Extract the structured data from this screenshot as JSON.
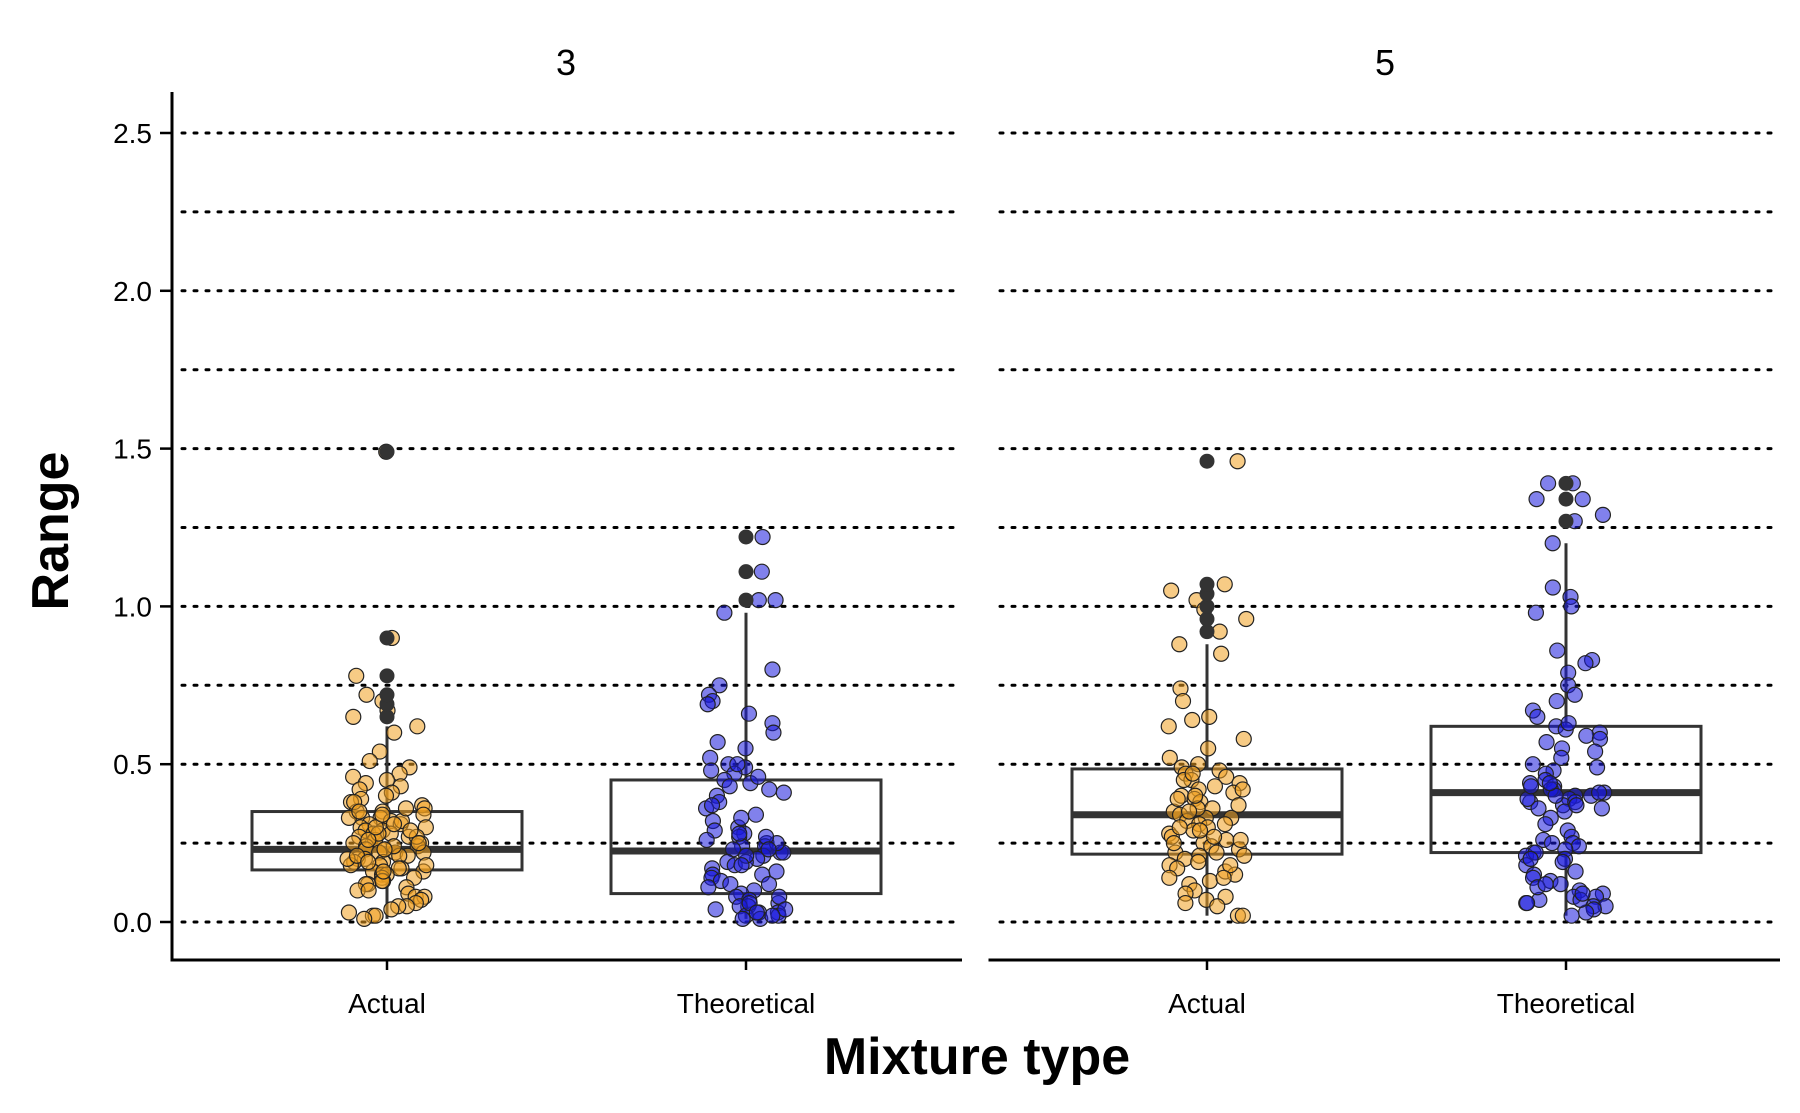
{
  "chart_data": {
    "type": "boxplot-with-jitter",
    "xlabel": "Mixture type",
    "ylabel": "Range",
    "ylim": [
      -0.12,
      2.62
    ],
    "yticks": [
      0.0,
      0.5,
      1.0,
      1.5,
      2.0,
      2.5
    ],
    "ytick_labels": [
      "0.0",
      "0.5",
      "1.0",
      "1.5",
      "2.0",
      "2.5"
    ],
    "gridlines": [
      0.0,
      0.25,
      0.5,
      0.75,
      1.0,
      1.25,
      1.5,
      1.75,
      2.0,
      2.25,
      2.5
    ],
    "grid": "horizontal dotted",
    "legend": "none",
    "colors": {
      "Actual": "#f0a020",
      "Theoretical": "#1a1adc",
      "outlier": "#333333",
      "box": "#333333"
    },
    "categories": [
      "Actual",
      "Theoretical"
    ],
    "panels": [
      {
        "label": "3",
        "boxes": [
          {
            "category": "Actual",
            "q1": 0.165,
            "median": 0.23,
            "q3": 0.35,
            "whisker_low": 0.01,
            "whisker_high": 0.62,
            "outliers": [
              0.65,
              0.69,
              0.72,
              0.78,
              0.9,
              1.49
            ]
          },
          {
            "category": "Theoretical",
            "q1": 0.09,
            "median": 0.225,
            "q3": 0.45,
            "whisker_low": 0.01,
            "whisker_high": 0.98,
            "outliers": [
              1.02,
              1.11,
              1.22
            ]
          }
        ]
      },
      {
        "label": "5",
        "boxes": [
          {
            "category": "Actual",
            "q1": 0.215,
            "median": 0.34,
            "q3": 0.485,
            "whisker_low": 0.02,
            "whisker_high": 0.88,
            "outliers": [
              0.92,
              0.96,
              1.0,
              1.04,
              1.07,
              1.46
            ]
          },
          {
            "category": "Theoretical",
            "q1": 0.22,
            "median": 0.41,
            "q3": 0.62,
            "whisker_low": 0.02,
            "whisker_high": 1.2,
            "outliers": [
              1.27,
              1.34,
              1.39
            ]
          }
        ]
      }
    ],
    "jitter_points": [
      {
        "panel": 0,
        "category": "Actual",
        "values": [
          1.49,
          0.9,
          0.78,
          0.72,
          0.7,
          0.67,
          0.65,
          0.62,
          0.6,
          0.54,
          0.51,
          0.49,
          0.47,
          0.46,
          0.45,
          0.44,
          0.43,
          0.42,
          0.41,
          0.4,
          0.39,
          0.38,
          0.37,
          0.36,
          0.35,
          0.35,
          0.34,
          0.33,
          0.33,
          0.32,
          0.31,
          0.31,
          0.3,
          0.3,
          0.29,
          0.29,
          0.28,
          0.28,
          0.27,
          0.27,
          0.26,
          0.26,
          0.25,
          0.25,
          0.24,
          0.24,
          0.23,
          0.23,
          0.22,
          0.22,
          0.21,
          0.21,
          0.2,
          0.2,
          0.19,
          0.19,
          0.18,
          0.18,
          0.17,
          0.17,
          0.16,
          0.16,
          0.15,
          0.15,
          0.14,
          0.14,
          0.13,
          0.13,
          0.12,
          0.12,
          0.11,
          0.1,
          0.1,
          0.09,
          0.08,
          0.08,
          0.07,
          0.06,
          0.05,
          0.05,
          0.04,
          0.03,
          0.02,
          0.02,
          0.01,
          0.28,
          0.32,
          0.36,
          0.26,
          0.22,
          0.2,
          0.3,
          0.24,
          0.34,
          0.38,
          0.18,
          0.16,
          0.27,
          0.31,
          0.23,
          0.21,
          0.29,
          0.25,
          0.19,
          0.33,
          0.35
        ]
      },
      {
        "panel": 0,
        "category": "Theoretical",
        "values": [
          1.22,
          1.11,
          1.02,
          1.02,
          0.98,
          0.8,
          0.75,
          0.72,
          0.7,
          0.69,
          0.66,
          0.63,
          0.6,
          0.57,
          0.55,
          0.52,
          0.5,
          0.49,
          0.48,
          0.47,
          0.45,
          0.43,
          0.42,
          0.4,
          0.38,
          0.36,
          0.34,
          0.32,
          0.3,
          0.29,
          0.28,
          0.27,
          0.26,
          0.25,
          0.24,
          0.24,
          0.23,
          0.22,
          0.21,
          0.2,
          0.19,
          0.18,
          0.17,
          0.16,
          0.15,
          0.14,
          0.13,
          0.12,
          0.11,
          0.1,
          0.09,
          0.08,
          0.07,
          0.06,
          0.05,
          0.05,
          0.04,
          0.03,
          0.03,
          0.02,
          0.02,
          0.01,
          0.01,
          0.22,
          0.25,
          0.28,
          0.19,
          0.15,
          0.12,
          0.08,
          0.06,
          0.04,
          0.03,
          0.02,
          0.33,
          0.37,
          0.41,
          0.44,
          0.46,
          0.5,
          0.27,
          0.23,
          0.21,
          0.18
        ]
      },
      {
        "panel": 1,
        "category": "Actual",
        "values": [
          1.46,
          1.07,
          1.05,
          1.02,
          0.99,
          0.96,
          0.92,
          0.88,
          0.85,
          0.74,
          0.7,
          0.65,
          0.64,
          0.62,
          0.58,
          0.55,
          0.52,
          0.5,
          0.49,
          0.48,
          0.47,
          0.46,
          0.45,
          0.44,
          0.43,
          0.42,
          0.41,
          0.4,
          0.39,
          0.38,
          0.37,
          0.36,
          0.35,
          0.34,
          0.33,
          0.32,
          0.31,
          0.3,
          0.29,
          0.28,
          0.27,
          0.26,
          0.25,
          0.24,
          0.23,
          0.22,
          0.21,
          0.2,
          0.19,
          0.18,
          0.17,
          0.16,
          0.15,
          0.14,
          0.13,
          0.12,
          0.1,
          0.09,
          0.08,
          0.07,
          0.06,
          0.05,
          0.02,
          0.02,
          0.36,
          0.42,
          0.33,
          0.29,
          0.25,
          0.45,
          0.39,
          0.31,
          0.27,
          0.21,
          0.35,
          0.4,
          0.47,
          0.3,
          0.26,
          0.22,
          0.18,
          0.14
        ]
      },
      {
        "panel": 1,
        "category": "Theoretical",
        "values": [
          1.39,
          1.39,
          1.34,
          1.34,
          1.29,
          1.27,
          1.2,
          1.06,
          1.03,
          1.0,
          0.98,
          0.86,
          0.83,
          0.82,
          0.79,
          0.75,
          0.72,
          0.7,
          0.67,
          0.65,
          0.62,
          0.6,
          0.59,
          0.58,
          0.55,
          0.54,
          0.52,
          0.5,
          0.49,
          0.48,
          0.47,
          0.45,
          0.44,
          0.43,
          0.42,
          0.41,
          0.4,
          0.4,
          0.39,
          0.38,
          0.37,
          0.36,
          0.35,
          0.33,
          0.31,
          0.29,
          0.27,
          0.26,
          0.25,
          0.24,
          0.23,
          0.22,
          0.21,
          0.2,
          0.19,
          0.18,
          0.16,
          0.15,
          0.14,
          0.13,
          0.12,
          0.1,
          0.09,
          0.08,
          0.07,
          0.06,
          0.05,
          0.05,
          0.04,
          0.03,
          0.02,
          0.41,
          0.39,
          0.42,
          0.38,
          0.43,
          0.37,
          0.4,
          0.44,
          0.36,
          0.08,
          0.11,
          0.07,
          0.09,
          0.06,
          0.12,
          0.22,
          0.25,
          0.2,
          0.57,
          0.61,
          0.63
        ]
      }
    ]
  }
}
